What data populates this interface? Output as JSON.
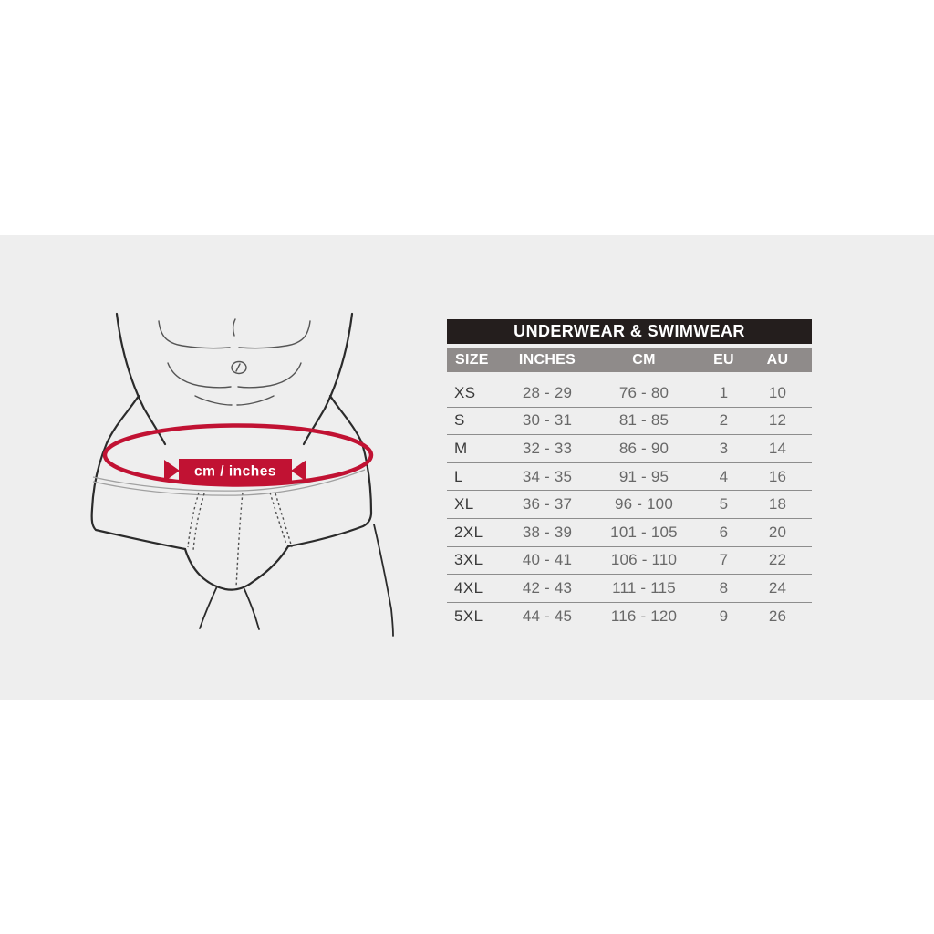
{
  "page": {
    "background_color": "#ffffff",
    "panel_color": "#eeeeee"
  },
  "chart_data": {
    "type": "table",
    "title": "UNDERWEAR & SWIMWEAR",
    "columns": [
      "SIZE",
      "INCHES",
      "CM",
      "EU",
      "AU"
    ],
    "rows": [
      [
        "XS",
        "28 - 29",
        "76 - 80",
        "1",
        "10"
      ],
      [
        "S",
        "30 - 31",
        "81 - 85",
        "2",
        "12"
      ],
      [
        "M",
        "32 - 33",
        "86 - 90",
        "3",
        "14"
      ],
      [
        "L",
        "34 - 35",
        "91 - 95",
        "4",
        "16"
      ],
      [
        "XL",
        "36 - 37",
        "96 - 100",
        "5",
        "18"
      ],
      [
        "2XL",
        "38 - 39",
        "101 - 105",
        "6",
        "20"
      ],
      [
        "3XL",
        "40 - 41",
        "106 - 110",
        "7",
        "22"
      ],
      [
        "4XL",
        "42 - 43",
        "111 - 115",
        "8",
        "24"
      ],
      [
        "5XL",
        "44 - 45",
        "116 - 120",
        "9",
        "26"
      ]
    ],
    "layout": {
      "title_bar_color": "#241e1d",
      "header_bar_color": "#8f8b8a",
      "header_text_color": "#ffffff",
      "size_text_color": "#3a3a3a",
      "value_text_color": "#686868",
      "divider_color": "#8d8d8d"
    }
  },
  "figure": {
    "description": "line drawing of male lower torso wearing briefs with measuring-tape ellipse around waist",
    "banner_label": "cm / inches",
    "accent_color": "#c11233",
    "outline_color": "#2b2b2b"
  }
}
